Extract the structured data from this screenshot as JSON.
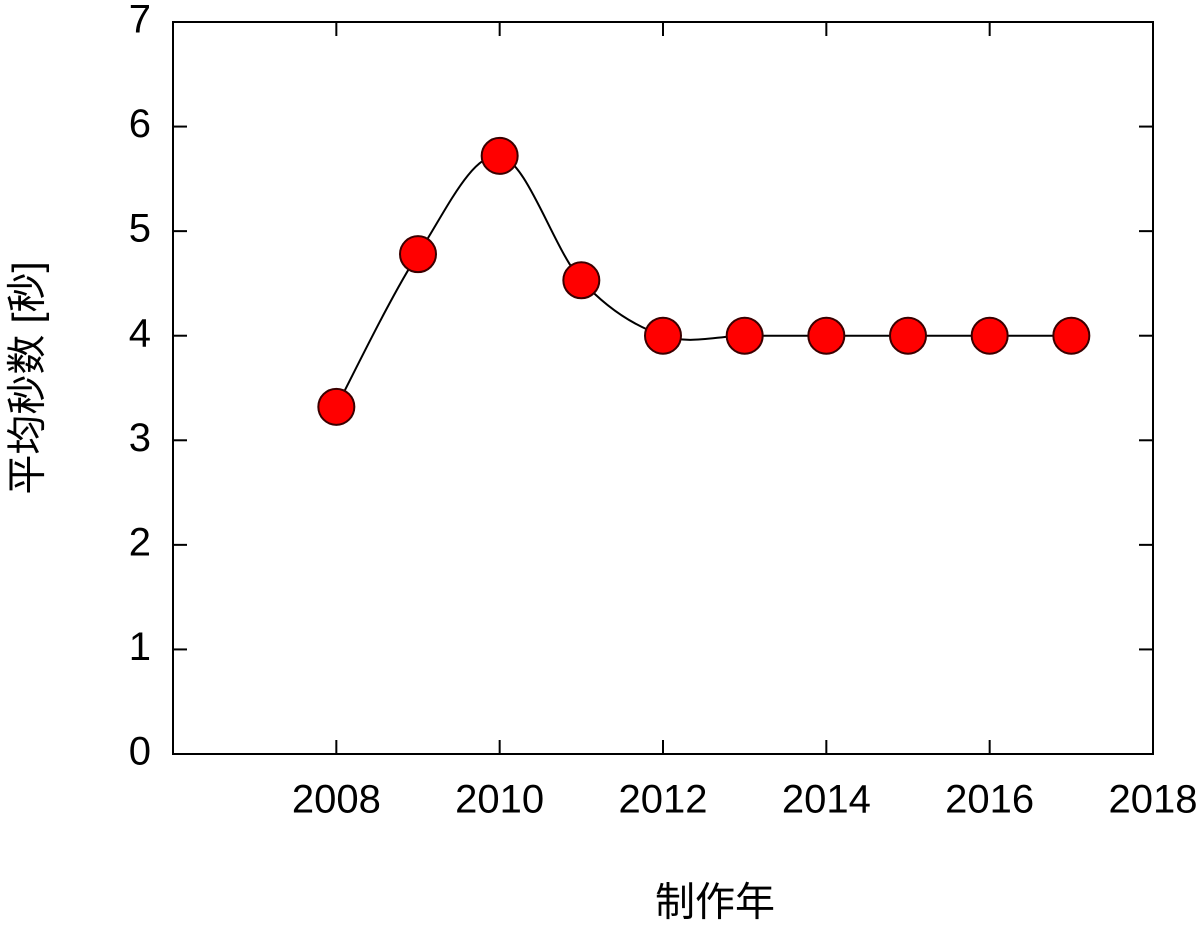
{
  "chart_data": {
    "type": "line",
    "x_label": "制作年",
    "y_label": "平均秒数 [秒]",
    "x": [
      2008,
      2009,
      2010,
      2011,
      2012,
      2013,
      2014,
      2015,
      2016,
      2017
    ],
    "series": [
      {
        "color": "#ff0000",
        "line_color": "#000000",
        "values": [
          3.32,
          4.78,
          5.72,
          4.53,
          4.0,
          4.0,
          4.0,
          4.0,
          4.0,
          4.0
        ]
      }
    ],
    "xlim": [
      2006,
      2018
    ],
    "xticks": [
      2008,
      2010,
      2012,
      2014,
      2016,
      2018
    ],
    "ylim": [
      0,
      7
    ],
    "yticks": [
      0,
      1,
      2,
      3,
      4,
      5,
      6,
      7
    ],
    "smooth": true
  }
}
